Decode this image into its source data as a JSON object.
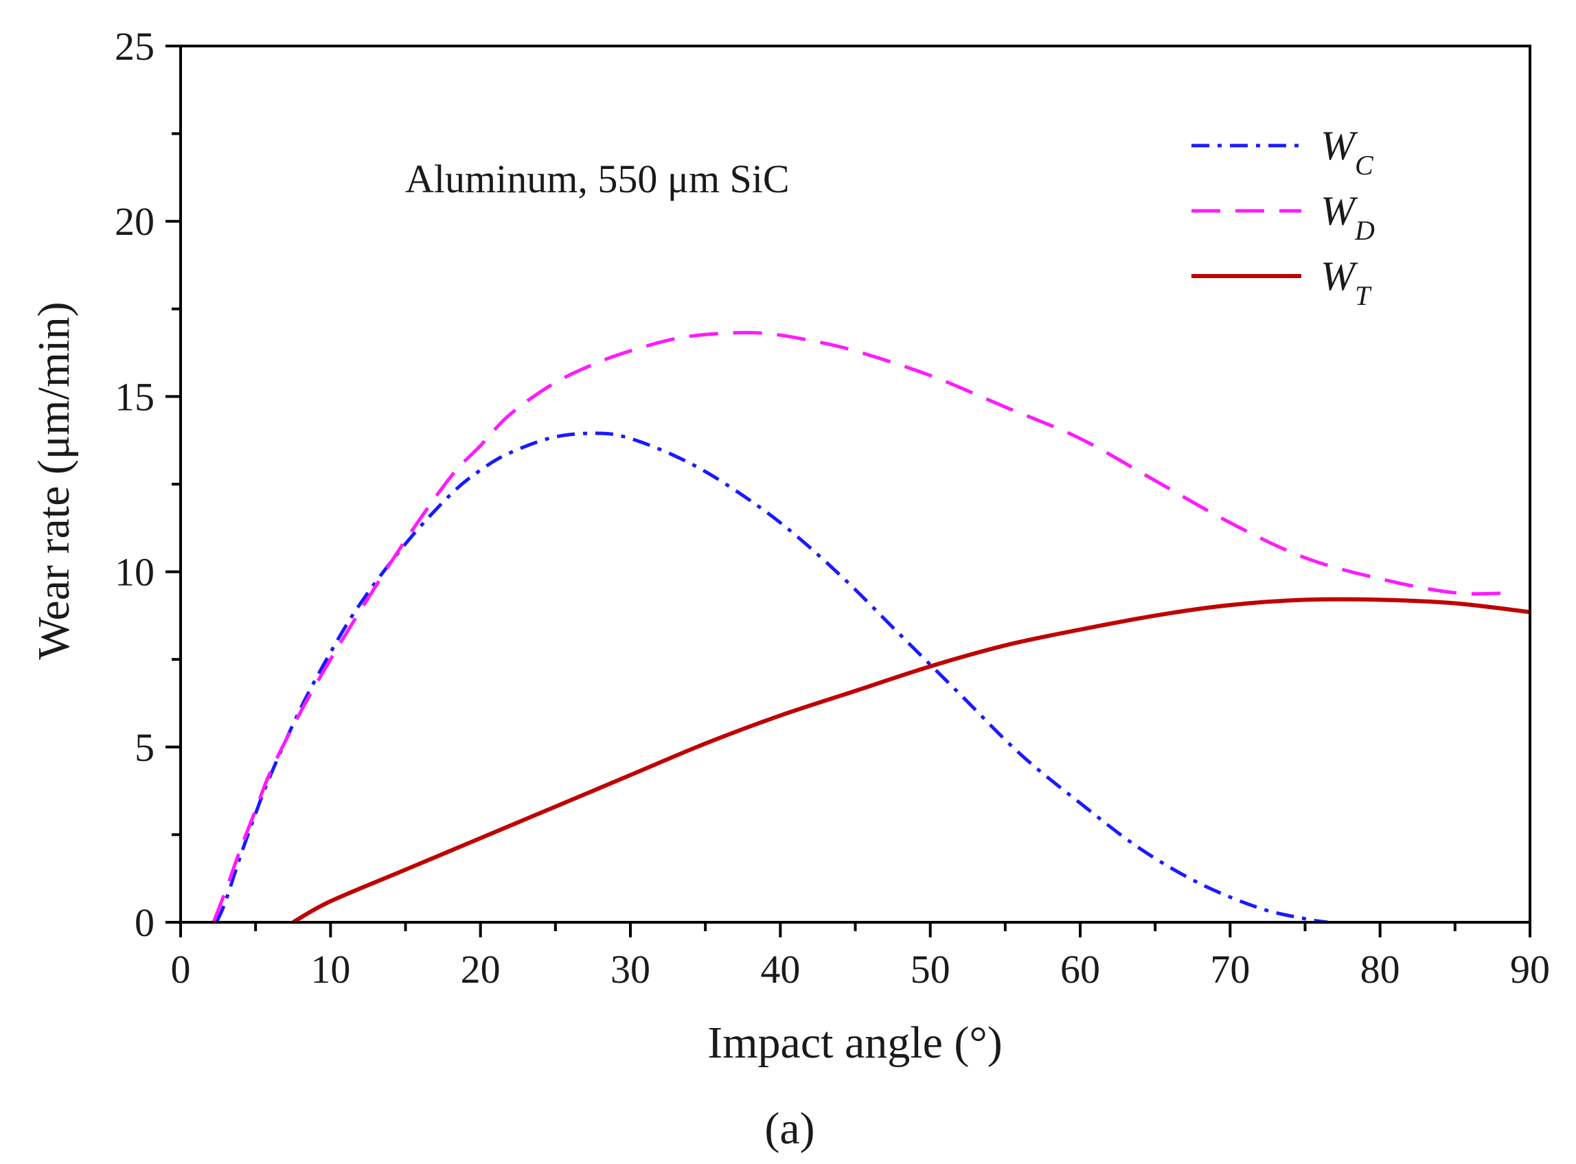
{
  "chart_data": {
    "type": "line",
    "xlabel": "Impact angle (°)",
    "ylabel": "Wear rate (μm/min)",
    "xlim": [
      0,
      90
    ],
    "ylim": [
      0,
      25
    ],
    "xticks": [
      0,
      10,
      20,
      30,
      40,
      50,
      60,
      70,
      80,
      90
    ],
    "yticks": [
      0,
      5,
      10,
      15,
      20,
      25
    ],
    "xtick_labels": [
      "0",
      "10",
      "20",
      "30",
      "40",
      "50",
      "60",
      "70",
      "80",
      "90"
    ],
    "ytick_labels": [
      "0",
      "5",
      "10",
      "15",
      "20",
      "25"
    ],
    "grid": false,
    "annotation": "Aluminum, 550 μm SiC",
    "caption": "(a)",
    "legend_position": "top-right",
    "series": [
      {
        "name": "W_C",
        "legend_main": "W",
        "legend_sub": "C",
        "color": "#1a1aff",
        "style": "dash-dot",
        "x": [
          2.4,
          3,
          4,
          5,
          6,
          8,
          10,
          12,
          15,
          18,
          20,
          22,
          25,
          28,
          30,
          33,
          36,
          40,
          44,
          48,
          52,
          56,
          60,
          64,
          68,
          72,
          75,
          76.5
        ],
        "y": [
          0,
          0.6,
          1.9,
          3.1,
          4.2,
          6.1,
          7.7,
          9.1,
          10.8,
          12.2,
          12.9,
          13.4,
          13.85,
          13.95,
          13.8,
          13.3,
          12.6,
          11.4,
          9.9,
          8.2,
          6.5,
          4.8,
          3.4,
          2.1,
          1.1,
          0.4,
          0.1,
          0
        ]
      },
      {
        "name": "W_D",
        "legend_main": "W",
        "legend_sub": "D",
        "color": "#ff1aff",
        "style": "dashed",
        "x": [
          2.2,
          3,
          4,
          5,
          6,
          8,
          10,
          12,
          15,
          18,
          20,
          22,
          25,
          28,
          30,
          33,
          36,
          39,
          42,
          45,
          50,
          55,
          60,
          65,
          70,
          75,
          80,
          85,
          89
        ],
        "y": [
          0,
          0.9,
          2.1,
          3.2,
          4.3,
          6.0,
          7.5,
          8.9,
          10.9,
          12.7,
          13.6,
          14.5,
          15.4,
          16.0,
          16.3,
          16.65,
          16.8,
          16.8,
          16.6,
          16.3,
          15.6,
          14.7,
          13.8,
          12.6,
          11.4,
          10.4,
          9.8,
          9.4,
          9.4
        ]
      },
      {
        "name": "W_T",
        "legend_main": "W",
        "legend_sub": "T",
        "color": "#c00000",
        "style": "solid",
        "x": [
          7.5,
          10,
          15,
          20,
          25,
          30,
          35,
          40,
          45,
          50,
          55,
          60,
          65,
          70,
          75,
          80,
          85,
          90
        ],
        "y": [
          0,
          0.6,
          1.5,
          2.4,
          3.3,
          4.2,
          5.1,
          5.9,
          6.6,
          7.3,
          7.9,
          8.35,
          8.75,
          9.05,
          9.2,
          9.2,
          9.1,
          8.85
        ]
      }
    ]
  }
}
